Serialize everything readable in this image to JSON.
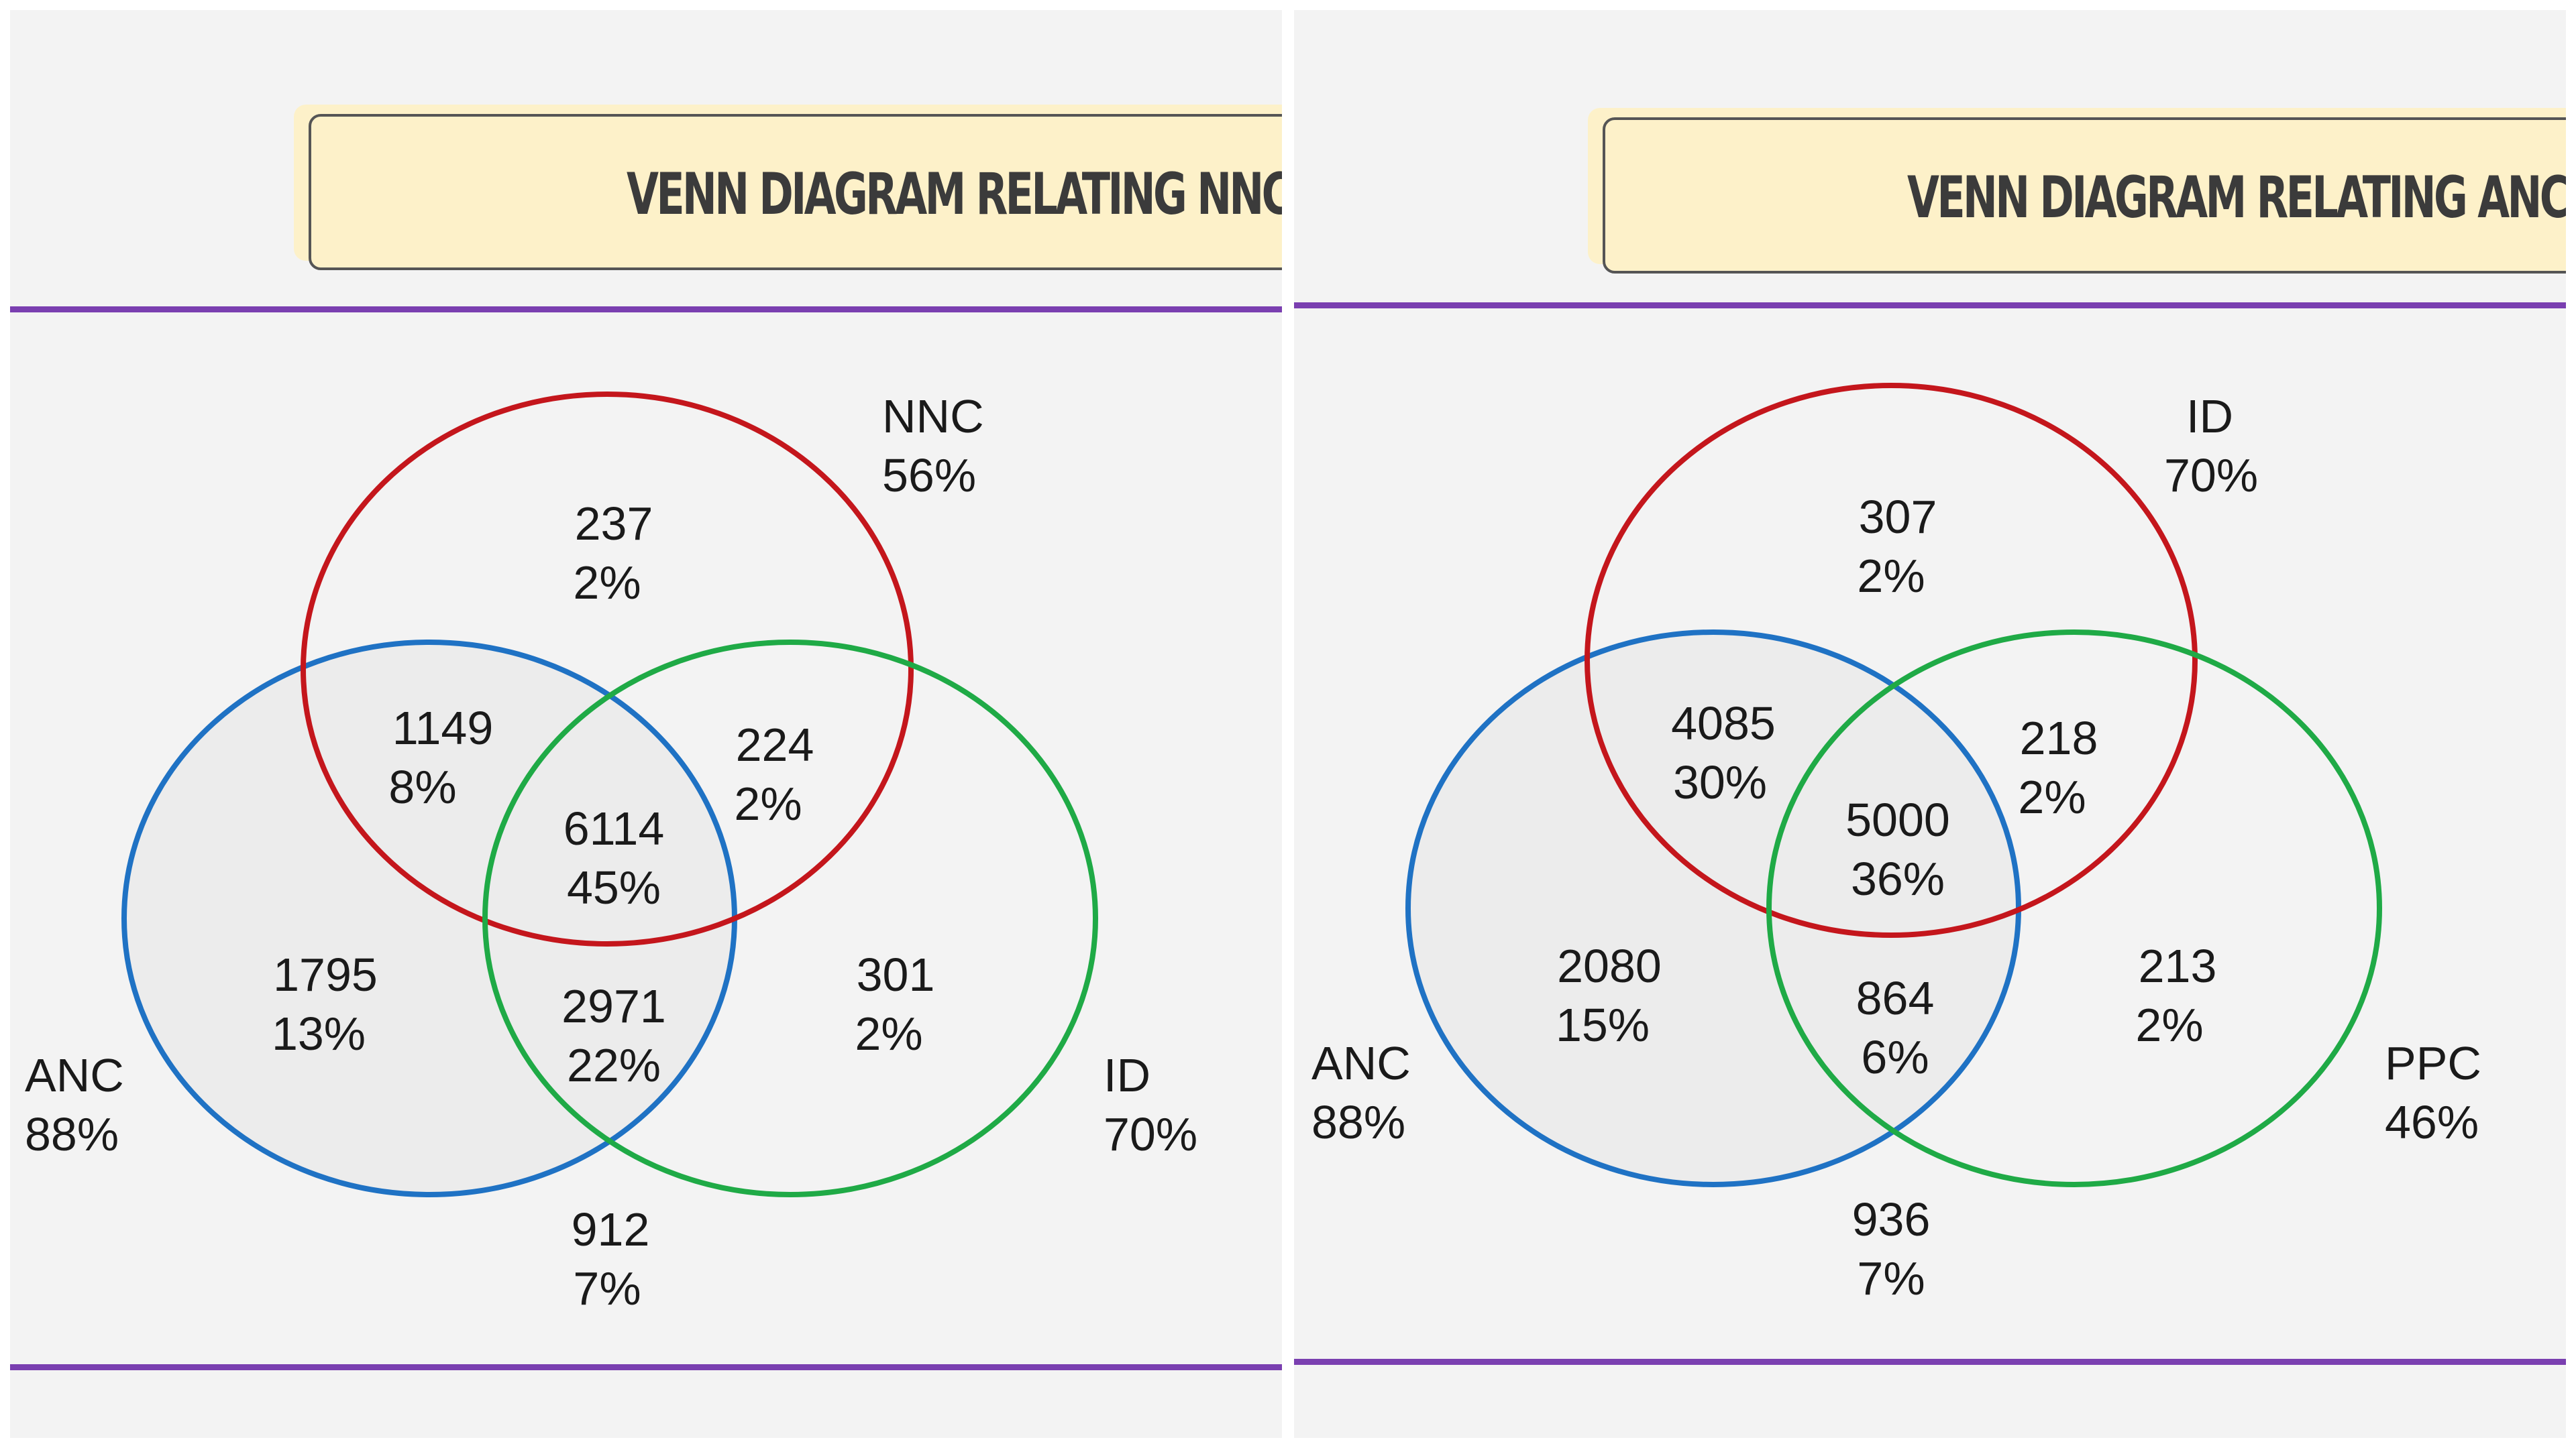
{
  "panels": [
    {
      "title": "VENN DIAGRAM RELATING NNC, ",
      "sets": {
        "top": {
          "name": "NNC",
          "pct": "56%",
          "color": "#c4161c"
        },
        "left": {
          "name": "ANC",
          "pct": "88%",
          "color": "#1f72c4"
        },
        "right": {
          "name": "ID",
          "pct": "70%",
          "color": "#1faa46"
        }
      },
      "regions": {
        "top_only": {
          "count": "237",
          "pct": "2%"
        },
        "top_left": {
          "count": "1149",
          "pct": "8%"
        },
        "top_right": {
          "count": "224",
          "pct": "2%"
        },
        "center": {
          "count": "6114",
          "pct": "45%"
        },
        "left_only": {
          "count": "1795",
          "pct": "13%"
        },
        "left_right": {
          "count": "2971",
          "pct": "22%"
        },
        "right_only": {
          "count": "301",
          "pct": "2%"
        },
        "outside": {
          "count": "912",
          "pct": "7%"
        }
      }
    },
    {
      "title": "VENN DIAGRAM RELATING ANC, I",
      "sets": {
        "top": {
          "name": "ID",
          "pct": "70%",
          "color": "#c4161c"
        },
        "left": {
          "name": "ANC",
          "pct": "88%",
          "color": "#1f72c4"
        },
        "right": {
          "name": "PPC",
          "pct": "46%",
          "color": "#1faa46"
        }
      },
      "regions": {
        "top_only": {
          "count": "307",
          "pct": "2%"
        },
        "top_left": {
          "count": "4085",
          "pct": "30%"
        },
        "top_right": {
          "count": "218",
          "pct": "2%"
        },
        "center": {
          "count": "5000",
          "pct": "36%"
        },
        "left_only": {
          "count": "2080",
          "pct": "15%"
        },
        "left_right": {
          "count": "864",
          "pct": "6%"
        },
        "right_only": {
          "count": "213",
          "pct": "2%"
        },
        "outside": {
          "count": "936",
          "pct": "7%"
        }
      }
    }
  ]
}
